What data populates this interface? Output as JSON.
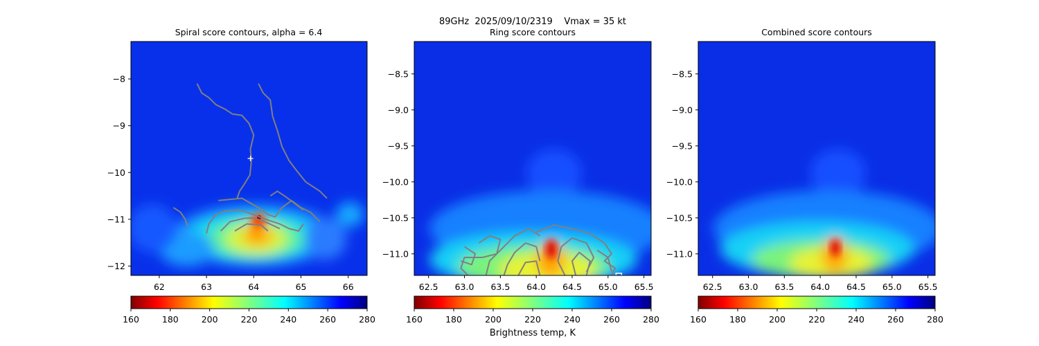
{
  "suptitle": "89GHz  2025/09/10/2319    Vmax = 35 kt",
  "colorbar": {
    "ticks": [
      160,
      180,
      200,
      220,
      240,
      260,
      280
    ],
    "range": [
      160,
      280
    ],
    "cmap": "jet_r",
    "label": "Brightness temp, K"
  },
  "chart_data": [
    {
      "type": "heatmap",
      "title": "Spiral score contours, alpha =  6.4",
      "xlim": [
        61.4,
        66.4
      ],
      "ylim": [
        -12.2,
        -7.2
      ],
      "xticks": [
        "62",
        "63",
        "64",
        "65",
        "66"
      ],
      "xtick_values": [
        62,
        63,
        64,
        65,
        66
      ],
      "yticks": [
        "−8",
        "−9",
        "−10",
        "−11",
        "−12"
      ],
      "ytick_values": [
        -8,
        -9,
        -10,
        -11,
        -12
      ],
      "marker": {
        "symbol": "+",
        "x": 63.93,
        "y": -9.7,
        "color": "#ffffff"
      },
      "cold_core": {
        "x": 64.2,
        "y": -10.95,
        "min_temp_K": 162
      },
      "contour_color": "#808080",
      "contours": [
        [
          [
            62.8,
            -8.1
          ],
          [
            62.9,
            -8.3
          ],
          [
            63.05,
            -8.4
          ],
          [
            63.2,
            -8.55
          ],
          [
            63.4,
            -8.65
          ],
          [
            63.55,
            -8.75
          ],
          [
            63.75,
            -8.78
          ],
          [
            63.9,
            -8.95
          ],
          [
            64.0,
            -9.2
          ],
          [
            63.93,
            -9.5
          ],
          [
            63.95,
            -9.75
          ],
          [
            63.92,
            -10.05
          ],
          [
            63.8,
            -10.25
          ],
          [
            63.7,
            -10.4
          ],
          [
            63.65,
            -10.55
          ]
        ],
        [
          [
            64.1,
            -8.1
          ],
          [
            64.2,
            -8.3
          ],
          [
            64.35,
            -8.45
          ],
          [
            64.4,
            -8.8
          ],
          [
            64.5,
            -9.1
          ],
          [
            64.6,
            -9.45
          ],
          [
            64.75,
            -9.75
          ],
          [
            64.9,
            -9.95
          ],
          [
            65.1,
            -10.2
          ],
          [
            65.4,
            -10.4
          ],
          [
            65.55,
            -10.55
          ]
        ],
        [
          [
            63.25,
            -10.6
          ],
          [
            63.75,
            -10.55
          ],
          [
            64.1,
            -10.75
          ],
          [
            64.3,
            -10.9
          ],
          [
            64.45,
            -10.95
          ],
          [
            64.6,
            -10.75
          ],
          [
            64.8,
            -10.6
          ],
          [
            65.0,
            -10.75
          ],
          [
            65.2,
            -10.85
          ],
          [
            65.4,
            -11.05
          ]
        ],
        [
          [
            62.3,
            -10.75
          ],
          [
            62.45,
            -10.85
          ],
          [
            62.55,
            -11.0
          ],
          [
            62.6,
            -11.15
          ]
        ],
        [
          [
            63.0,
            -11.3
          ],
          [
            63.05,
            -11.1
          ],
          [
            63.2,
            -10.9
          ],
          [
            63.4,
            -10.82
          ],
          [
            63.7,
            -10.8
          ],
          [
            64.0,
            -10.9
          ],
          [
            64.25,
            -11.0
          ],
          [
            64.55,
            -11.1
          ],
          [
            64.75,
            -11.2
          ],
          [
            64.95,
            -11.25
          ],
          [
            65.05,
            -11.1
          ]
        ],
        [
          [
            63.3,
            -11.25
          ],
          [
            63.5,
            -11.05
          ],
          [
            63.8,
            -10.98
          ],
          [
            64.0,
            -10.97
          ],
          [
            64.3,
            -11.08
          ],
          [
            64.55,
            -11.2
          ]
        ],
        [
          [
            63.6,
            -11.25
          ],
          [
            63.85,
            -11.1
          ],
          [
            64.15,
            -11.12
          ],
          [
            64.3,
            -11.25
          ]
        ],
        [
          [
            64.35,
            -10.5
          ],
          [
            64.5,
            -10.4
          ],
          [
            64.65,
            -10.5
          ],
          [
            64.85,
            -10.65
          ],
          [
            65.05,
            -10.8
          ]
        ]
      ]
    },
    {
      "type": "heatmap",
      "title": "Ring score contours",
      "xlim": [
        62.3,
        65.6
      ],
      "ylim": [
        -11.3,
        -8.05
      ],
      "xticks": [
        "62.5",
        "63.0",
        "63.5",
        "64.0",
        "64.5",
        "65.0",
        "65.5"
      ],
      "xtick_values": [
        62.5,
        63.0,
        63.5,
        64.0,
        64.5,
        65.0,
        65.5
      ],
      "yticks": [
        "−8.5",
        "−9.0",
        "−9.5",
        "−10.0",
        "−10.5",
        "−11.0"
      ],
      "ytick_values": [
        -8.5,
        -9.0,
        -9.5,
        -10.0,
        -10.5,
        -11.0
      ],
      "cold_core": {
        "x": 64.2,
        "y": -11.0,
        "min_temp_K": 162
      },
      "contour_color": "#808080",
      "contours": [
        [
          [
            63.3,
            -11.3
          ],
          [
            63.35,
            -11.1
          ],
          [
            63.5,
            -10.95
          ],
          [
            63.7,
            -10.75
          ],
          [
            63.9,
            -10.65
          ],
          [
            64.05,
            -10.75
          ]
        ],
        [
          [
            63.55,
            -11.3
          ],
          [
            63.6,
            -11.15
          ],
          [
            63.7,
            -10.98
          ],
          [
            63.85,
            -10.85
          ],
          [
            64.0,
            -10.9
          ],
          [
            64.05,
            -11.1
          ]
        ],
        [
          [
            63.75,
            -11.3
          ],
          [
            63.85,
            -11.12
          ],
          [
            64.0,
            -11.1
          ],
          [
            64.05,
            -11.3
          ]
        ],
        [
          [
            64.4,
            -11.3
          ],
          [
            64.3,
            -11.1
          ],
          [
            64.35,
            -10.9
          ],
          [
            64.5,
            -10.78
          ],
          [
            64.7,
            -10.85
          ],
          [
            64.8,
            -11.05
          ],
          [
            64.7,
            -11.25
          ]
        ],
        [
          [
            64.55,
            -11.3
          ],
          [
            64.5,
            -11.1
          ],
          [
            64.6,
            -10.98
          ],
          [
            64.75,
            -11.1
          ],
          [
            64.7,
            -11.3
          ]
        ],
        [
          [
            63.2,
            -10.85
          ],
          [
            63.35,
            -10.75
          ],
          [
            63.5,
            -10.8
          ],
          [
            63.45,
            -11.0
          ],
          [
            63.25,
            -11.05
          ],
          [
            63.0,
            -11.05
          ],
          [
            62.95,
            -11.2
          ],
          [
            63.05,
            -11.3
          ]
        ],
        [
          [
            63.0,
            -10.9
          ],
          [
            63.15,
            -11.0
          ],
          [
            63.1,
            -11.15
          ],
          [
            62.95,
            -11.1
          ]
        ],
        [
          [
            64.0,
            -10.7
          ],
          [
            64.25,
            -10.6
          ],
          [
            64.5,
            -10.65
          ],
          [
            64.75,
            -10.72
          ],
          [
            64.95,
            -10.85
          ],
          [
            65.05,
            -11.0
          ],
          [
            64.95,
            -11.1
          ],
          [
            65.1,
            -11.2
          ],
          [
            65.05,
            -11.3
          ]
        ],
        [
          [
            64.85,
            -10.95
          ],
          [
            65.0,
            -11.05
          ],
          [
            65.05,
            -11.25
          ]
        ]
      ],
      "box_marker": {
        "x": 65.15,
        "y": -11.27
      }
    },
    {
      "type": "heatmap",
      "title": "Combined score contours",
      "xlim": [
        62.3,
        65.6
      ],
      "ylim": [
        -11.3,
        -8.05
      ],
      "xticks": [
        "62.5",
        "63.0",
        "63.5",
        "64.0",
        "64.5",
        "65.0",
        "65.5"
      ],
      "xtick_values": [
        62.5,
        63.0,
        63.5,
        64.0,
        64.5,
        65.0,
        65.5
      ],
      "yticks": [
        "−8.5",
        "−9.0",
        "−9.5",
        "−10.0",
        "−10.5",
        "−11.0"
      ],
      "ytick_values": [
        -8.5,
        -9.0,
        -9.5,
        -10.0,
        -10.5,
        -11.0
      ],
      "cold_core": {
        "x": 64.2,
        "y": -11.0,
        "min_temp_K": 162
      },
      "contour_color": "#808080",
      "contours": []
    }
  ]
}
